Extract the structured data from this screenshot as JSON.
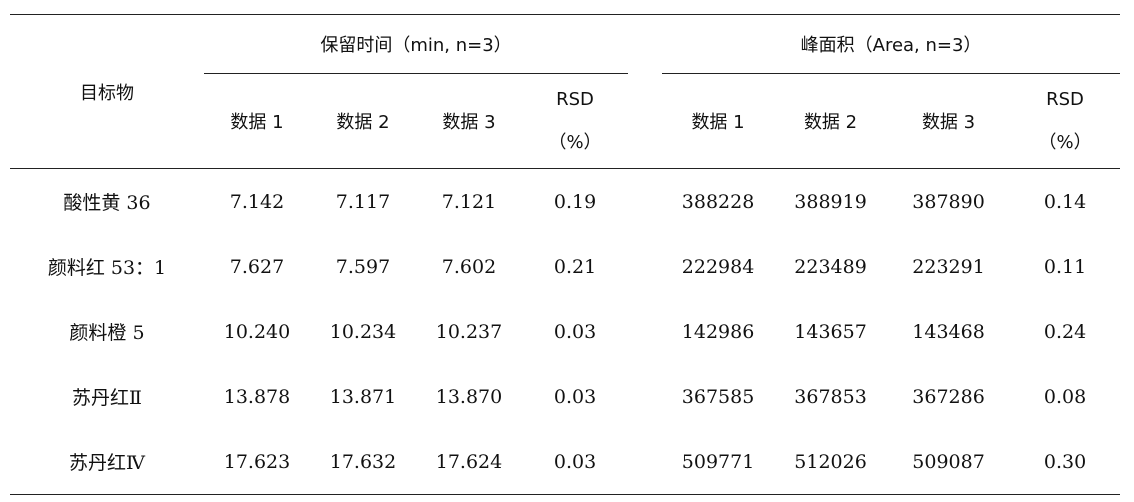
{
  "header": {
    "target": "目标物",
    "retention_group": "保留时间（min, n=3）",
    "area_group": "峰面积（Area, n=3）",
    "sub": [
      "数据 1",
      "数据 2",
      "数据 3"
    ],
    "rsd_label": "RSD",
    "rsd_unit": "（%）"
  },
  "rows": [
    {
      "name": "酸性黄 36",
      "rt": [
        "7.142",
        "7.117",
        "7.121"
      ],
      "rt_rsd": "0.19",
      "area": [
        "388228",
        "388919",
        "387890"
      ],
      "area_rsd": "0.14"
    },
    {
      "name": "颜料红 53：1",
      "rt": [
        "7.627",
        "7.597",
        "7.602"
      ],
      "rt_rsd": "0.21",
      "area": [
        "222984",
        "223489",
        "223291"
      ],
      "area_rsd": "0.11"
    },
    {
      "name": "颜料橙 5",
      "rt": [
        "10.240",
        "10.234",
        "10.237"
      ],
      "rt_rsd": "0.03",
      "area": [
        "142986",
        "143657",
        "143468"
      ],
      "area_rsd": "0.24"
    },
    {
      "name": "苏丹红Ⅱ",
      "rt": [
        "13.878",
        "13.871",
        "13.870"
      ],
      "rt_rsd": "0.03",
      "area": [
        "367585",
        "367853",
        "367286"
      ],
      "area_rsd": "0.08"
    },
    {
      "name": "苏丹红Ⅳ",
      "rt": [
        "17.623",
        "17.632",
        "17.624"
      ],
      "rt_rsd": "0.03",
      "area": [
        "509771",
        "512026",
        "509087"
      ],
      "area_rsd": "0.30"
    }
  ]
}
